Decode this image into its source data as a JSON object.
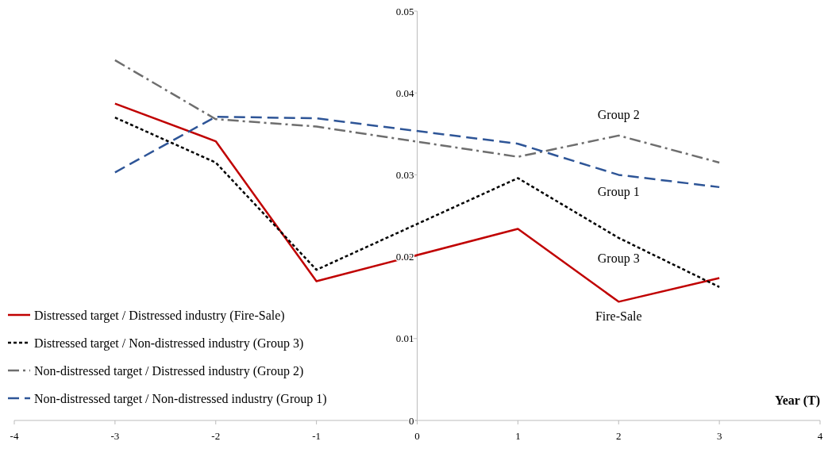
{
  "chart_data": {
    "type": "line",
    "xlabel": "Year (T)",
    "x": [
      -3,
      -2,
      -1,
      1,
      2,
      3
    ],
    "xlim": [
      -4,
      4
    ],
    "xticks": [
      -4,
      -3,
      -2,
      -1,
      0,
      1,
      2,
      3,
      4
    ],
    "ylim": [
      0,
      0.05
    ],
    "yticks": [
      {
        "value": 0,
        "label": "0"
      },
      0.01,
      0.02,
      0.03,
      0.04,
      0.05
    ],
    "grid": false,
    "legend": "bottom left",
    "marker": "none",
    "series": [
      {
        "name": "Distressed target / Distressed industry (Fire-Sale)",
        "color": "#c00000",
        "line_style": "solid",
        "values": [
          0.0387,
          0.0341,
          0.017,
          0.0234,
          0.0145,
          0.0174
        ]
      },
      {
        "name": "Distressed target / Non-distressed industry (Group 3)",
        "color": "#000000",
        "line_style": "dotted",
        "values": [
          0.037,
          0.0315,
          0.0184,
          0.0296,
          0.0223,
          0.0163
        ]
      },
      {
        "name": "Non-distressed target / Distressed industry (Group 2)",
        "color": "#6e6e6e",
        "line_style": "dashdot",
        "values": [
          0.044,
          0.0368,
          0.0359,
          0.0322,
          0.0348,
          0.0315
        ]
      },
      {
        "name": "Non-distressed target / Non-distressed industry (Group 1)",
        "color": "#2e5597",
        "line_style": "dashed",
        "values": [
          0.0303,
          0.0371,
          0.0369,
          0.0338,
          0.03,
          0.0285
        ]
      }
    ],
    "annotations": [
      "Group 2",
      "Group 1",
      "Group 3",
      "Fire-Sale"
    ]
  }
}
